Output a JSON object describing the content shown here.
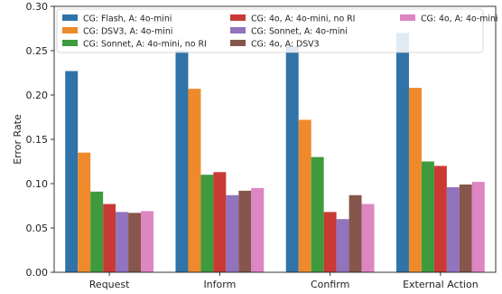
{
  "chart_data": {
    "type": "bar",
    "ylabel": "Error Rate",
    "xlabel": "",
    "ylim": [
      0,
      0.3
    ],
    "yticks": [
      "0.00",
      "0.05",
      "0.10",
      "0.15",
      "0.20",
      "0.25",
      "0.30"
    ],
    "ytick_values": [
      0,
      0.05,
      0.1,
      0.15,
      0.2,
      0.25,
      0.3
    ],
    "grid": false,
    "legend_placement": "top",
    "categories": [
      "Request",
      "Inform",
      "Confirm",
      "External Action"
    ],
    "series": [
      {
        "name": "CG: Flash, A: 4o-mini",
        "color": "#2f73a8",
        "values": [
          0.227,
          0.25,
          0.255,
          0.27
        ]
      },
      {
        "name": "CG: DSV3, A: 4o-mini",
        "color": "#ee8a2c",
        "values": [
          0.135,
          0.207,
          0.172,
          0.208
        ]
      },
      {
        "name": "CG: Sonnet, A: 4o-mini, no RI",
        "color": "#3d9a3d",
        "values": [
          0.091,
          0.11,
          0.13,
          0.125
        ]
      },
      {
        "name": "CG: 4o, A: 4o-mini, no RI",
        "color": "#c93a34",
        "values": [
          0.077,
          0.113,
          0.068,
          0.12
        ]
      },
      {
        "name": "CG: Sonnet, A: 4o-mini",
        "color": "#9273bd",
        "values": [
          0.068,
          0.087,
          0.06,
          0.096
        ]
      },
      {
        "name": "CG: 4o, A: DSV3",
        "color": "#86564c",
        "values": [
          0.067,
          0.092,
          0.087,
          0.099
        ]
      },
      {
        "name": "CG: 4o, A: 4o-mini",
        "color": "#de85c4",
        "values": [
          0.069,
          0.095,
          0.077,
          0.102
        ]
      }
    ]
  }
}
